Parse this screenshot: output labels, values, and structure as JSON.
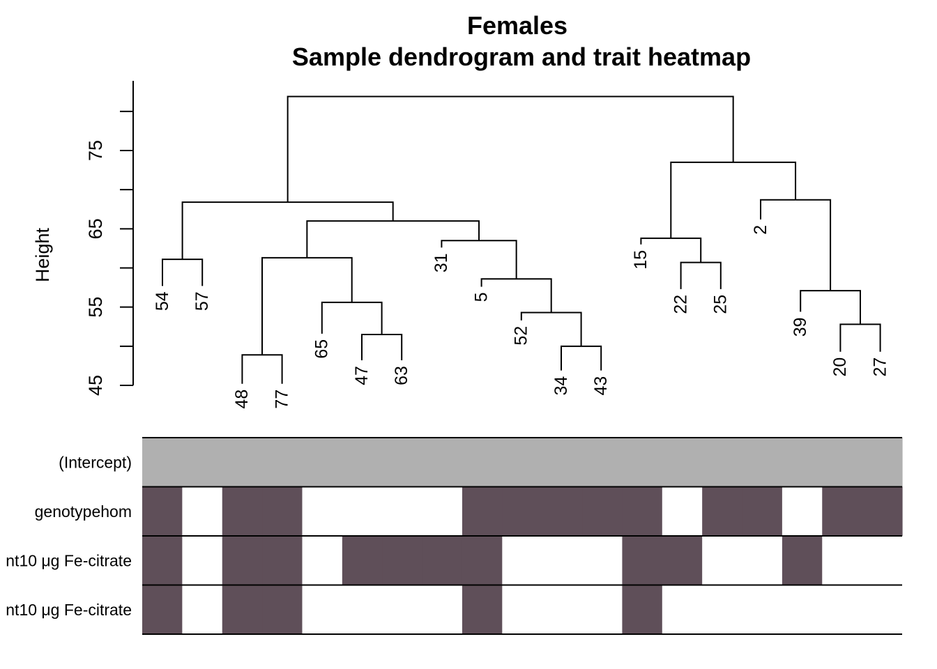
{
  "chart_data": {
    "type": "heatmap",
    "title": "Females",
    "subtitle": "Sample dendrogram and trait heatmap",
    "ylabel": "Height",
    "yticks": [
      45,
      55,
      65,
      75
    ],
    "yticks_minor": [
      50,
      60,
      70,
      80
    ],
    "ylim": [
      45,
      80
    ],
    "grid": false,
    "colors": {
      "on": "#5f4f59",
      "intercept": "#b0b0b0",
      "off": "#ffffff",
      "line": "#000000"
    },
    "leaf_order": [
      "54",
      "57",
      "48",
      "77",
      "65",
      "47",
      "63",
      "31",
      "5",
      "52",
      "34",
      "43",
      "15",
      "22",
      "25",
      "2",
      "39",
      "20",
      "27"
    ],
    "dendrogram": {
      "nodes": [
        {
          "id": "L54",
          "label": "54",
          "h": 57.7
        },
        {
          "id": "L57",
          "label": "57",
          "h": 57.7
        },
        {
          "id": "L48",
          "label": "48",
          "h": 45.2
        },
        {
          "id": "L77",
          "label": "77",
          "h": 45.2
        },
        {
          "id": "L65",
          "label": "65",
          "h": 51.6
        },
        {
          "id": "L47",
          "label": "47",
          "h": 48.2
        },
        {
          "id": "L63",
          "label": "63",
          "h": 48.2
        },
        {
          "id": "L31",
          "label": "31",
          "h": 62.6
        },
        {
          "id": "L5",
          "label": "5",
          "h": 57.6
        },
        {
          "id": "L52",
          "label": "52",
          "h": 53.3
        },
        {
          "id": "L34",
          "label": "34",
          "h": 46.9
        },
        {
          "id": "L43",
          "label": "43",
          "h": 46.9
        },
        {
          "id": "L15",
          "label": "15",
          "h": 63.0
        },
        {
          "id": "L22",
          "label": "22",
          "h": 57.3
        },
        {
          "id": "L25",
          "label": "25",
          "h": 57.3
        },
        {
          "id": "L2",
          "label": "2",
          "h": 66.2
        },
        {
          "id": "L39",
          "label": "39",
          "h": 54.4
        },
        {
          "id": "L20",
          "label": "20",
          "h": 49.3
        },
        {
          "id": "L27",
          "label": "27",
          "h": 49.3
        },
        {
          "id": "A",
          "children": [
            "L54",
            "L57"
          ],
          "h": 61.1
        },
        {
          "id": "B",
          "children": [
            "L48",
            "L77"
          ],
          "h": 48.9
        },
        {
          "id": "C",
          "children": [
            "L47",
            "L63"
          ],
          "h": 51.5
        },
        {
          "id": "D",
          "children": [
            "L65",
            "C"
          ],
          "h": 55.6
        },
        {
          "id": "E",
          "children": [
            "B",
            "D"
          ],
          "h": 61.3
        },
        {
          "id": "F",
          "children": [
            "L34",
            "L43"
          ],
          "h": 50.0
        },
        {
          "id": "G",
          "children": [
            "L52",
            "F"
          ],
          "h": 54.3
        },
        {
          "id": "H",
          "children": [
            "L5",
            "G"
          ],
          "h": 58.6
        },
        {
          "id": "I",
          "children": [
            "L31",
            "H"
          ],
          "h": 63.5
        },
        {
          "id": "J",
          "children": [
            "E",
            "I"
          ],
          "h": 66.0
        },
        {
          "id": "K",
          "children": [
            "A",
            "J"
          ],
          "h": 68.4
        },
        {
          "id": "L",
          "children": [
            "L22",
            "L25"
          ],
          "h": 60.7
        },
        {
          "id": "M",
          "children": [
            "L15",
            "L"
          ],
          "h": 63.8
        },
        {
          "id": "N",
          "children": [
            "L20",
            "L27"
          ],
          "h": 52.8
        },
        {
          "id": "O",
          "children": [
            "L39",
            "N"
          ],
          "h": 57.1
        },
        {
          "id": "P",
          "children": [
            "L2",
            "O"
          ],
          "h": 68.7
        },
        {
          "id": "Q",
          "children": [
            "M",
            "P"
          ],
          "h": 73.5
        },
        {
          "id": "R",
          "children": [
            "K",
            "Q"
          ],
          "h": 81.9
        }
      ],
      "root": "R"
    },
    "traits": [
      {
        "name": "(Intercept)",
        "values": [
          1,
          1,
          1,
          1,
          1,
          1,
          1,
          1,
          1,
          1,
          1,
          1,
          1,
          1,
          1,
          1,
          1,
          1,
          1
        ],
        "intercept": true
      },
      {
        "name": "genotypehom",
        "values": [
          1,
          0,
          1,
          1,
          0,
          0,
          0,
          0,
          1,
          1,
          1,
          1,
          1,
          0,
          1,
          1,
          0,
          1,
          1
        ]
      },
      {
        "name": "nt10 μg Fe-citrate",
        "values": [
          1,
          0,
          1,
          1,
          0,
          1,
          1,
          1,
          1,
          0,
          0,
          0,
          1,
          1,
          0,
          0,
          1,
          0,
          0
        ]
      },
      {
        "name": "nt10 μg Fe-citrate",
        "values": [
          1,
          0,
          1,
          1,
          0,
          0,
          0,
          0,
          1,
          0,
          0,
          0,
          1,
          0,
          0,
          0,
          0,
          0,
          0
        ]
      }
    ]
  }
}
